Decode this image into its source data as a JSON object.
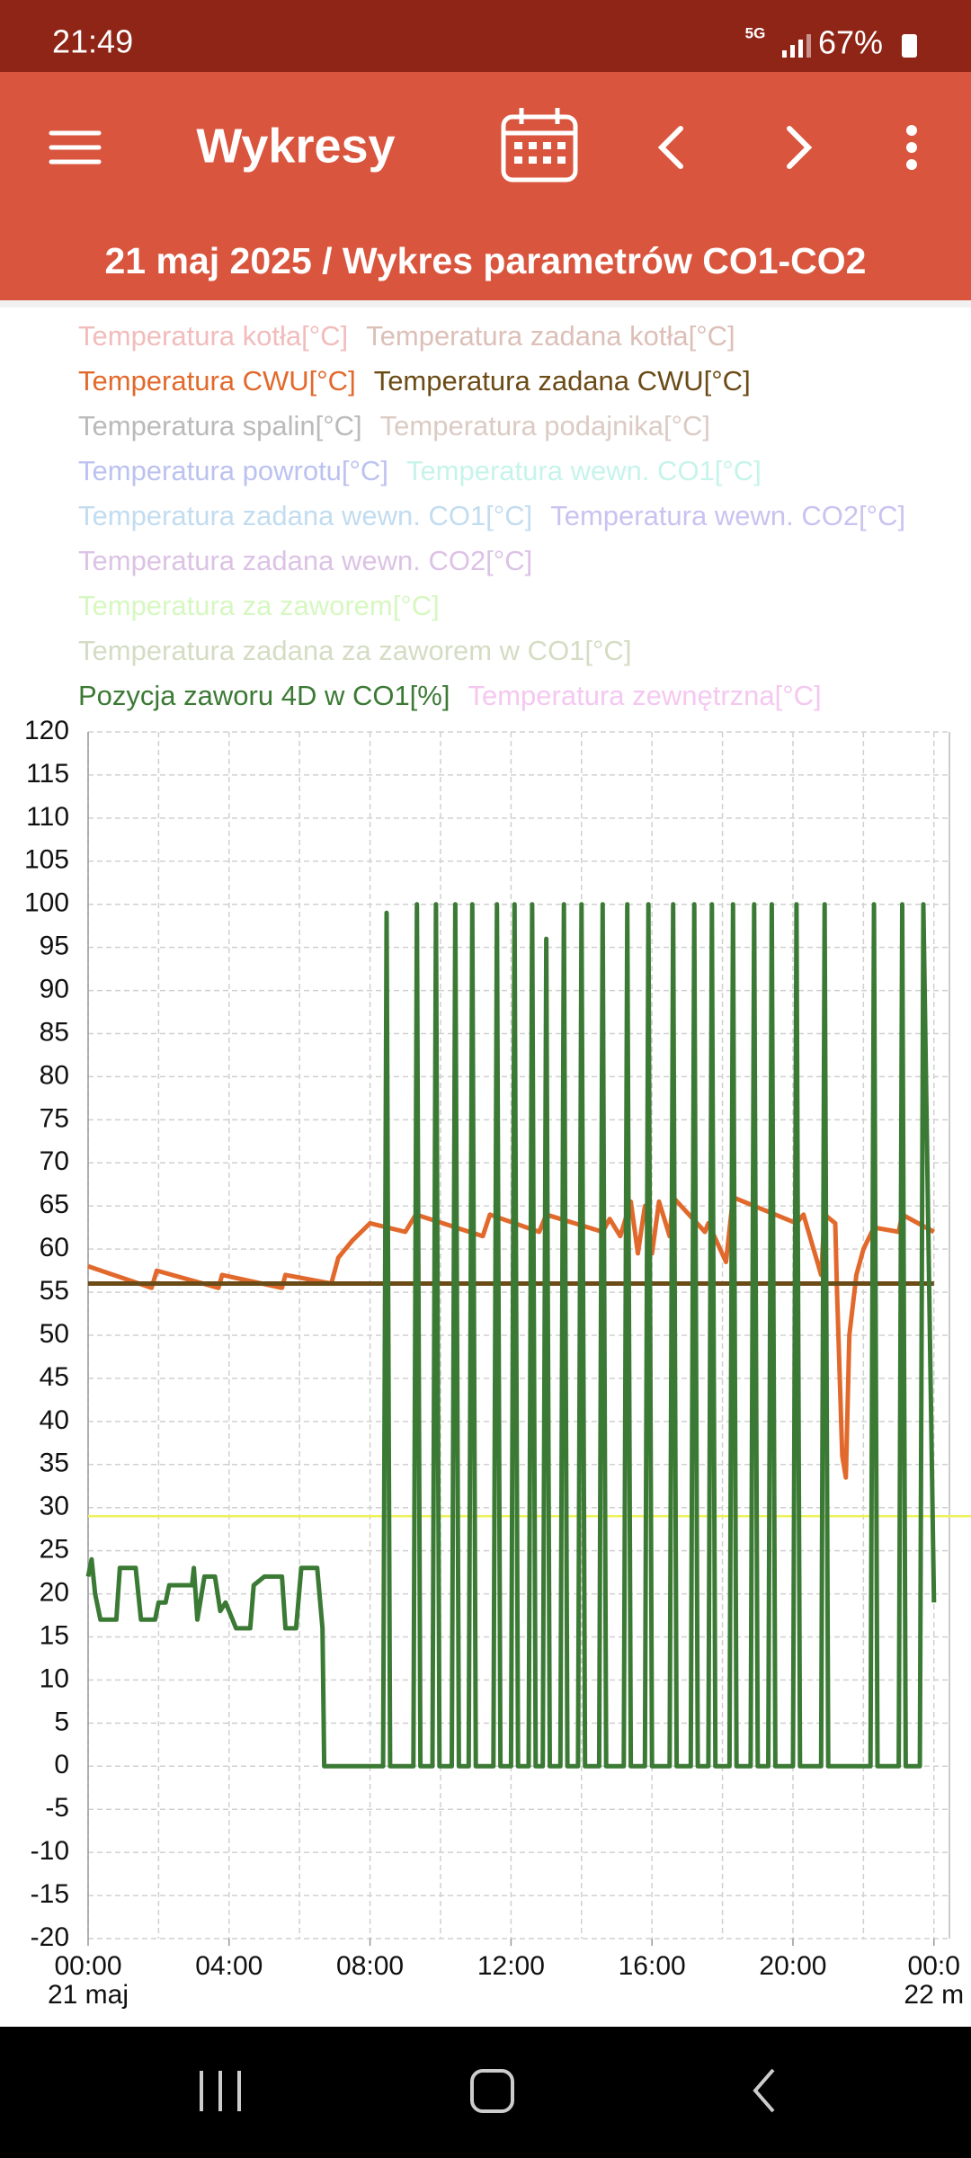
{
  "status_bar": {
    "time": "21:49",
    "network": "5G",
    "battery": "67%"
  },
  "app_bar": {
    "title": "Wykresy"
  },
  "chart_data": {
    "type": "line",
    "title": "21 maj 2025 / Wykres parametrów CO1-CO2",
    "xlim": [
      0,
      24.44
    ],
    "xticks": [
      {
        "value": 0,
        "label": "00:00"
      },
      {
        "value": 4,
        "label": "04:00"
      },
      {
        "value": 8,
        "label": "08:00"
      },
      {
        "value": 12,
        "label": "12:00"
      },
      {
        "value": 16,
        "label": "16:00"
      },
      {
        "value": 20,
        "label": "20:00"
      },
      {
        "value": 24,
        "label": "00:0"
      }
    ],
    "x_sublabels": [
      {
        "value": 0,
        "label": "21 maj"
      },
      {
        "value": 24,
        "label": "22 m"
      }
    ],
    "xgrid": [
      0,
      2,
      4,
      6,
      8,
      10,
      12,
      14,
      16,
      18,
      20,
      22,
      24
    ],
    "ylim": [
      -20,
      120
    ],
    "yticks": [
      -20,
      -15,
      -10,
      -5,
      0,
      5,
      10,
      15,
      20,
      25,
      30,
      35,
      40,
      45,
      50,
      55,
      60,
      65,
      70,
      75,
      80,
      85,
      90,
      95,
      100,
      105,
      110,
      115,
      120
    ],
    "grid": true,
    "reference_lines": [
      {
        "value": 29,
        "color": "#eef25a"
      }
    ],
    "series": [
      {
        "name": "Temperatura kotła[°C]",
        "color": "#f2bcbc",
        "enabled": false
      },
      {
        "name": "Temperatura zadana kotła[°C]",
        "color": "#dcc0b8",
        "enabled": false
      },
      {
        "name": "Temperatura CWU[°C]",
        "color": "#e2692c",
        "enabled": true,
        "x": [
          0,
          1.8,
          1.95,
          3.7,
          3.8,
          5.5,
          5.6,
          6.9,
          7.1,
          7.5,
          8.0,
          9.0,
          9.3,
          11.2,
          11.4,
          12.8,
          13.0,
          14.6,
          14.8,
          15.1,
          15.4,
          15.6,
          15.8,
          16.0,
          16.2,
          16.5,
          16.6,
          17.5,
          17.6,
          18.1,
          18.3,
          20.1,
          20.3,
          20.8,
          20.9,
          21.2,
          21.25,
          21.4,
          21.5,
          21.6,
          21.8,
          22.0,
          22.3,
          23.0,
          23.1,
          24
        ],
        "values": [
          58,
          55.5,
          57.5,
          55.5,
          57,
          55.5,
          57,
          56,
          59,
          61,
          63,
          62,
          64,
          61.5,
          64,
          62,
          64,
          62,
          63.5,
          61.5,
          65.5,
          59.5,
          65,
          59.5,
          65.5,
          61.5,
          66,
          62,
          63,
          58.5,
          66,
          63,
          64,
          57,
          64,
          63,
          55,
          36,
          33.5,
          50,
          57,
          60,
          62.5,
          62,
          64,
          62
        ]
      },
      {
        "name": "Temperatura zadana CWU[°C]",
        "color": "#6b4b16",
        "enabled": true,
        "x": [
          0,
          24
        ],
        "values": [
          56,
          56
        ]
      },
      {
        "name": "Temperatura spalin[°C]",
        "color": "#bababa",
        "enabled": false
      },
      {
        "name": "Temperatura podajnika[°C]",
        "color": "#dccbc4",
        "enabled": false
      },
      {
        "name": "Temperatura powrotu[°C]",
        "color": "#bcc2f0",
        "enabled": false
      },
      {
        "name": "Temperatura wewn. CO1[°C]",
        "color": "#c6f4ea",
        "enabled": false
      },
      {
        "name": "Temperatura zadana wewn. CO1[°C]",
        "color": "#c2dcf0",
        "enabled": false
      },
      {
        "name": "Temperatura wewn. CO2[°C]",
        "color": "#cac2f0",
        "enabled": false
      },
      {
        "name": "Temperatura zadana wewn. CO2[°C]",
        "color": "#dcc2e4",
        "enabled": false
      },
      {
        "name": "Temperatura za zaworem[°C]",
        "color": "#d6f8c0",
        "enabled": false
      },
      {
        "name": "Temperatura zadana za zaworem w CO1[°C]",
        "color": "#d4dcc4",
        "enabled": false
      },
      {
        "name": "Pozycja zaworu 4D w CO1[%]",
        "color": "#3b7a34",
        "enabled": true,
        "x": [
          0,
          0.1,
          0.2,
          0.35,
          0.8,
          0.9,
          1.35,
          1.5,
          1.9,
          2.0,
          2.2,
          2.3,
          2.95,
          3.0,
          3.1,
          3.3,
          3.6,
          3.75,
          3.9,
          4.2,
          4.6,
          4.7,
          5.0,
          5.5,
          5.6,
          5.9,
          6.05,
          6.5,
          6.65,
          6.7,
          8.37,
          8.47,
          8.57,
          9.23,
          9.33,
          9.43,
          9.77,
          9.87,
          9.97,
          10.32,
          10.42,
          10.52,
          10.8,
          10.9,
          11.0,
          11.5,
          11.6,
          11.7,
          12.0,
          12.1,
          12.2,
          12.5,
          12.6,
          12.7,
          12.9,
          13.0,
          13.1,
          13.4,
          13.5,
          13.6,
          13.9,
          14.0,
          14.1,
          14.5,
          14.6,
          14.7,
          15.2,
          15.3,
          15.4,
          15.8,
          15.9,
          16.0,
          16.5,
          16.6,
          16.7,
          17.1,
          17.2,
          17.3,
          17.6,
          17.7,
          17.8,
          18.2,
          18.3,
          18.4,
          18.8,
          18.9,
          19.0,
          19.3,
          19.4,
          19.5,
          20.0,
          20.1,
          20.2,
          20.8,
          20.9,
          21.0,
          22.2,
          22.3,
          22.4,
          23.0,
          23.1,
          23.2,
          23.6,
          23.7,
          24
        ],
        "values": [
          22,
          24,
          20,
          17,
          17,
          23,
          23,
          17,
          17,
          19,
          19,
          21,
          21,
          23,
          17,
          22,
          22,
          18,
          19,
          16,
          16,
          21,
          22,
          22,
          16,
          16,
          23,
          23,
          16,
          0,
          0,
          99,
          0,
          0,
          100,
          0,
          0,
          100,
          0,
          0,
          100,
          0,
          0,
          100,
          0,
          0,
          100,
          0,
          0,
          100,
          0,
          0,
          100,
          0,
          0,
          96,
          0,
          0,
          100,
          0,
          0,
          100,
          0,
          0,
          100,
          0,
          0,
          100,
          0,
          0,
          100,
          0,
          0,
          100,
          0,
          0,
          100,
          0,
          0,
          100,
          0,
          0,
          100,
          0,
          0,
          100,
          0,
          0,
          100,
          0,
          0,
          100,
          0,
          0,
          100,
          0,
          0,
          100,
          0,
          0,
          100,
          0,
          0,
          100,
          19
        ]
      },
      {
        "name": "Temperatura zewnętrzna[°C]",
        "color": "#f4c8f0",
        "enabled": false
      }
    ]
  }
}
